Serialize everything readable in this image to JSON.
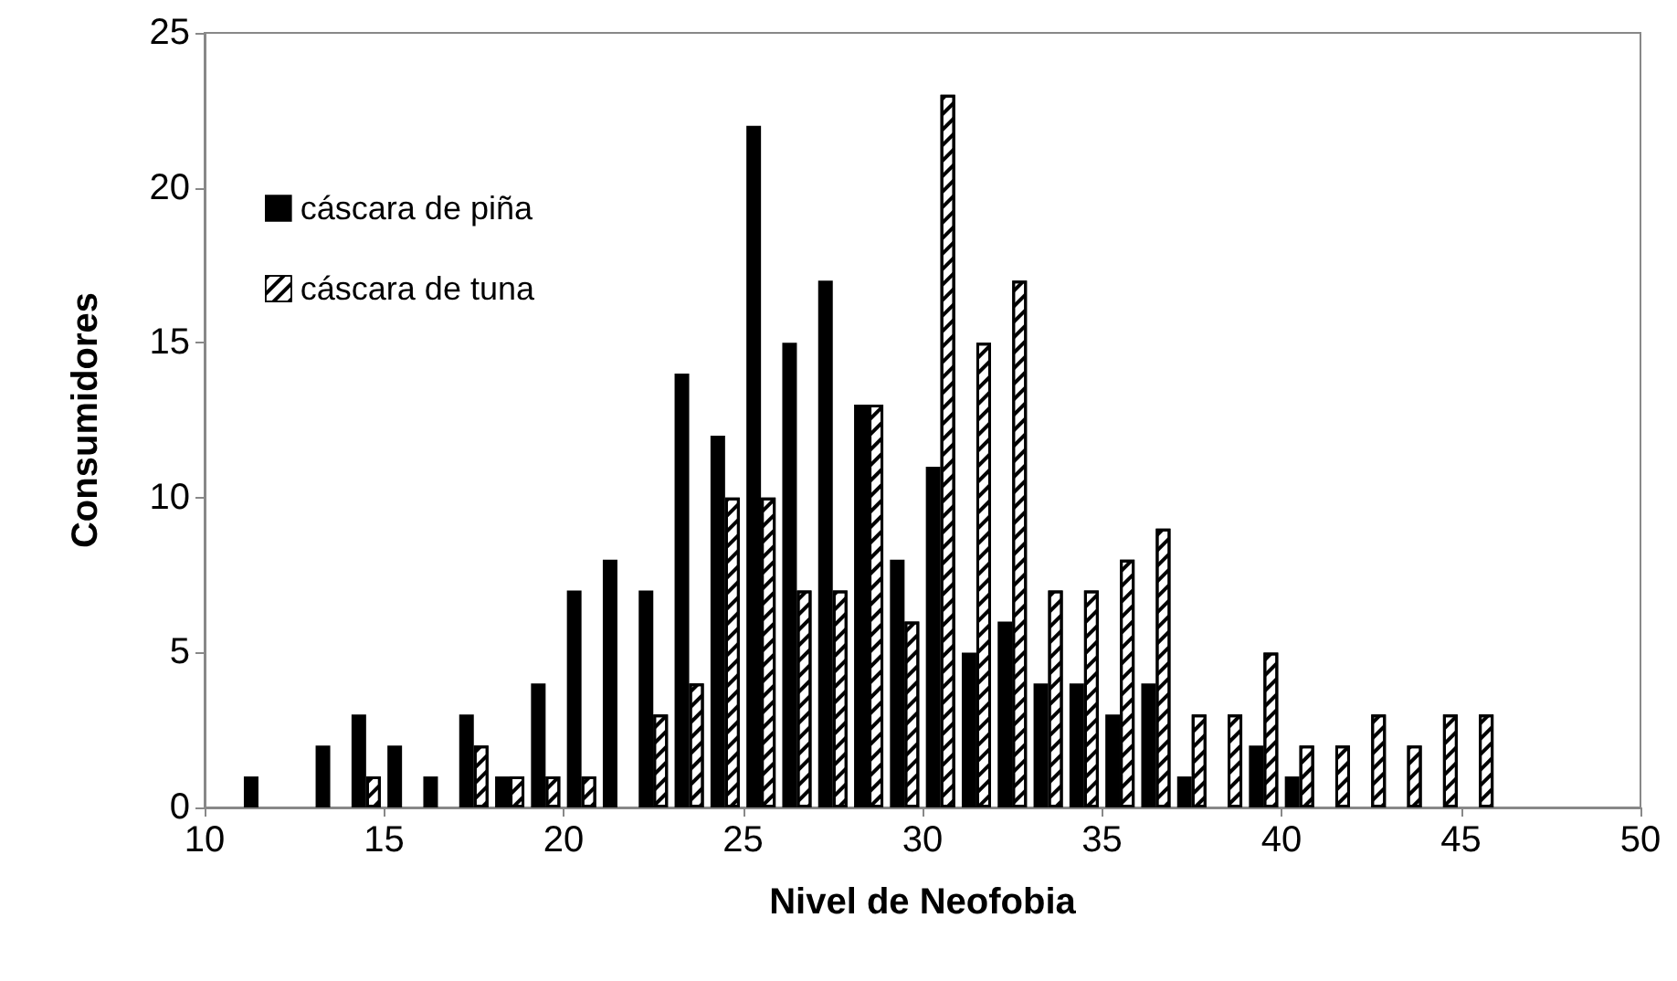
{
  "chart_data": {
    "type": "bar",
    "xlabel": "Nivel de Neofobia",
    "ylabel": "Consumidores",
    "x": [
      11.5,
      12.5,
      13.5,
      14.5,
      15.5,
      16.5,
      17.5,
      18.5,
      19.5,
      20.5,
      21.5,
      22.5,
      23.5,
      24.5,
      25.5,
      26.5,
      27.5,
      28.5,
      29.5,
      30.5,
      31.5,
      32.5,
      33.5,
      34.5,
      35.5,
      36.5,
      37.5,
      38.5,
      39.5,
      40.5,
      41.5,
      42.5,
      43.5,
      44.5,
      45.5
    ],
    "series": [
      {
        "name": "cáscara de piña",
        "color": "#000000",
        "values": [
          1,
          0,
          2,
          3,
          2,
          1,
          3,
          1,
          4,
          7,
          8,
          7,
          14,
          12,
          22,
          15,
          17,
          13,
          8,
          11,
          5,
          6,
          4,
          4,
          3,
          4,
          1,
          0,
          2,
          1,
          0,
          0,
          0,
          0,
          0
        ]
      },
      {
        "name": "cáscara de tuna",
        "color": "#ffffff",
        "values": [
          0,
          0,
          0,
          1,
          0,
          0,
          2,
          1,
          1,
          1,
          0,
          3,
          4,
          10,
          10,
          7,
          7,
          13,
          6,
          23,
          15,
          17,
          7,
          7,
          8,
          9,
          3,
          3,
          5,
          2,
          2,
          3,
          2,
          3,
          3
        ]
      }
    ],
    "xlim": [
      10,
      50
    ],
    "xticks": [
      10,
      15,
      20,
      25,
      30,
      35,
      40,
      45,
      50
    ],
    "ylim": [
      0,
      25
    ],
    "yticks": [
      0,
      5,
      10,
      15,
      20,
      25
    ],
    "grid": false,
    "legend": "top left"
  }
}
